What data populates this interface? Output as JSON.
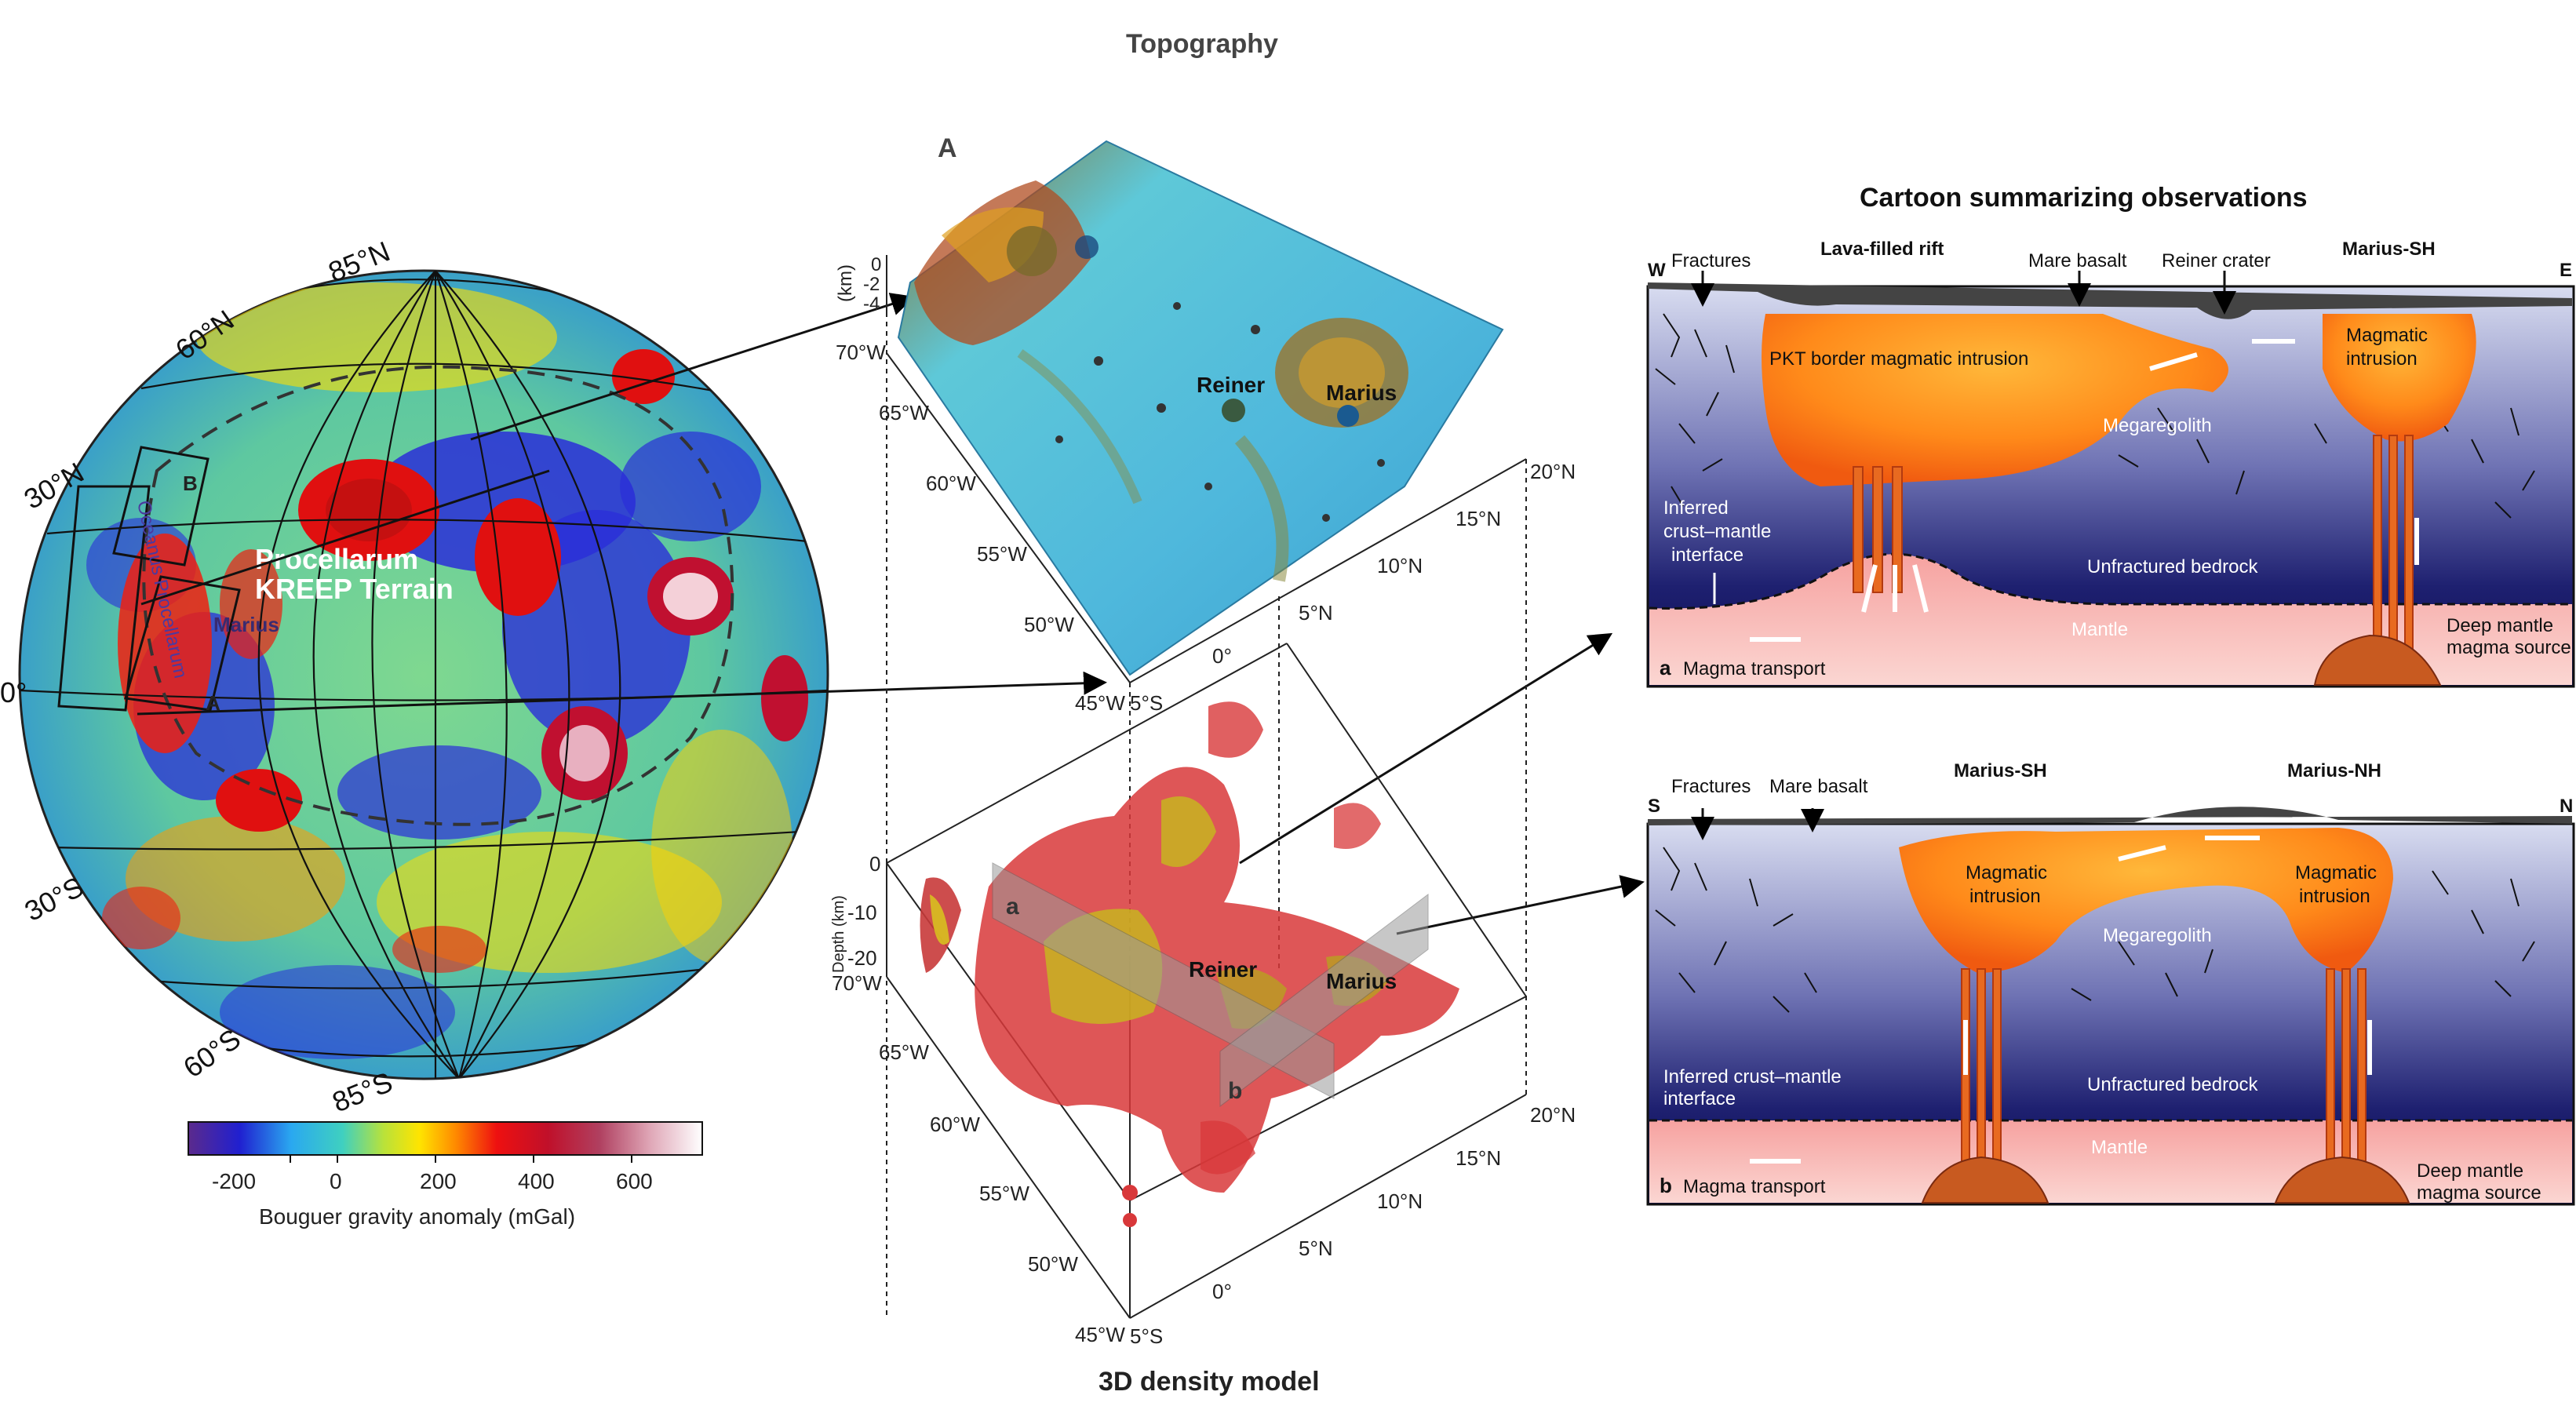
{
  "globe": {
    "lat_labels": [
      {
        "text": "85°N"
      },
      {
        "text": "60°N"
      },
      {
        "text": "30°N"
      },
      {
        "text": "0°"
      },
      {
        "text": "30°S"
      },
      {
        "text": "60°S"
      },
      {
        "text": "85°S"
      }
    ],
    "region_title_line1": "Procellarum",
    "region_title_line2": "KREEP Terrain",
    "ocean_label": "Oceanus Procellarum",
    "marius_label": "Marius",
    "box_b_label": "B",
    "box_a_label": "A"
  },
  "colorbar": {
    "ticks": [
      "-200",
      "0",
      "200",
      "400",
      "600"
    ],
    "label": "Bouguer gravity anomaly (mGal)"
  },
  "topography": {
    "title": "Topography",
    "panel_letter": "A",
    "z_axis_unit": "(km)",
    "z_ticks": [
      "0",
      "-2",
      "-4"
    ],
    "lon_ticks": [
      "70°W",
      "65°W",
      "60°W",
      "55°W",
      "50°W",
      "45°W"
    ],
    "lat_ticks": [
      "5°S",
      "0°",
      "5°N",
      "10°N",
      "15°N",
      "20°N"
    ],
    "crater_labels": [
      "Reiner",
      "Marius"
    ]
  },
  "density": {
    "title": "3D  density model",
    "depth_label": "Depth (km)",
    "depth_ticks": [
      "0",
      "-10",
      "-20"
    ],
    "lon_ticks": [
      "70°W",
      "65°W",
      "60°W",
      "55°W",
      "50°W",
      "45°W"
    ],
    "lat_ticks": [
      "5°S",
      "0°",
      "5°N",
      "10°N",
      "15°N",
      "20°N"
    ],
    "crater_labels": [
      "Reiner",
      "Marius"
    ],
    "profile_letters": [
      "a",
      "b"
    ]
  },
  "cartoon": {
    "title": "Cartoon summarizing observations",
    "a": {
      "letter": "a",
      "dir_left": "W",
      "dir_right": "E",
      "fractures": "Fractures",
      "rift": "Lava-filled rift",
      "mare": "Mare basalt",
      "reiner": "Reiner crater",
      "marius_sh": "Marius-SH",
      "pkt": "PKT border magmatic intrusion",
      "intrusion_line1": "Magmatic",
      "intrusion_line2": "intrusion",
      "megaregolith": "Megaregolith",
      "inferred_line1": "Inferred",
      "inferred_line2": "crust–mantle",
      "inferred_line3": "interface",
      "bedrock": "Unfractured bedrock",
      "mantle": "Mantle",
      "transport": "Magma transport",
      "deep_line1": "Deep mantle",
      "deep_line2": "magma source"
    },
    "b": {
      "letter": "b",
      "dir_left": "S",
      "dir_right": "N",
      "fractures": "Fractures",
      "mare": "Mare basalt",
      "marius_sh": "Marius-SH",
      "marius_nh": "Marius-NH",
      "intrusion_line1": "Magmatic",
      "intrusion_line2": "intrusion",
      "megaregolith": "Megaregolith",
      "inferred_line1": "Inferred crust–mantle",
      "inferred_line2": "interface",
      "bedrock": "Unfractured bedrock",
      "mantle": "Mantle",
      "transport": "Magma transport",
      "deep_line1": "Deep mantle",
      "deep_line2": "magma source"
    }
  }
}
